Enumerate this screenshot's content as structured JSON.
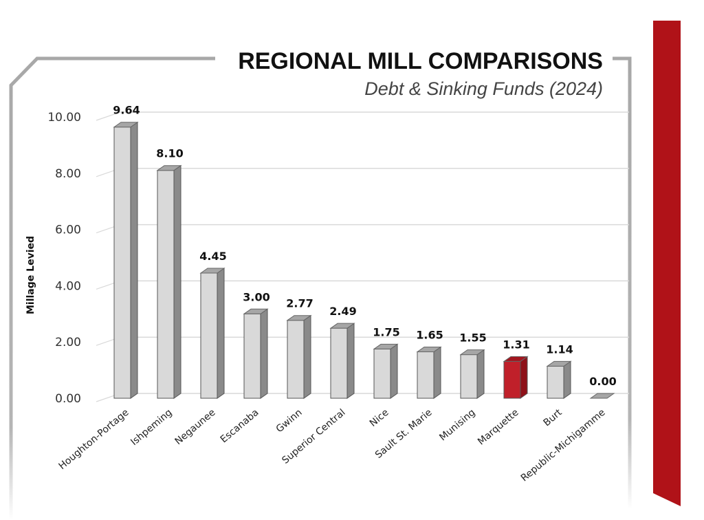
{
  "chart_data": {
    "type": "bar",
    "title": "REGIONAL MILL COMPARISONS",
    "subtitle": "Debt & Sinking Funds (2024)",
    "xlabel": "",
    "ylabel": "Millage Levied",
    "ylim": [
      0,
      10
    ],
    "yticks": [
      "0.00",
      "2.00",
      "4.00",
      "6.00",
      "8.00",
      "10.00"
    ],
    "ytick_values": [
      0,
      2,
      4,
      6,
      8,
      10
    ],
    "grid": true,
    "legend": "none",
    "categories": [
      "Houghton-Portage",
      "Ishpeming",
      "Negaunee",
      "Escanaba",
      "Gwinn",
      "Superior Central",
      "Nice",
      "Sault St. Marie",
      "Munising",
      "Marquette",
      "Burt",
      "Republic-Michigamme"
    ],
    "values": [
      9.64,
      8.1,
      4.45,
      3.0,
      2.77,
      2.49,
      1.75,
      1.65,
      1.55,
      1.31,
      1.14,
      0.0
    ],
    "value_labels": [
      "9.64",
      "8.10",
      "4.45",
      "3.00",
      "2.77",
      "2.49",
      "1.75",
      "1.65",
      "1.55",
      "1.31",
      "1.14",
      "0.00"
    ],
    "highlight_category": "Marquette"
  },
  "colors": {
    "bar_front": "#d9d9d9",
    "bar_side": "#8a8a8a",
    "bar_top": "#a6a6a6",
    "highlight_front": "#c0202a",
    "highlight_side": "#8e1119",
    "highlight_top": "#a3161f",
    "frame": "#a8a8a8",
    "gridline": "#d9d9d9",
    "accent_ribbon": "#b01218"
  }
}
